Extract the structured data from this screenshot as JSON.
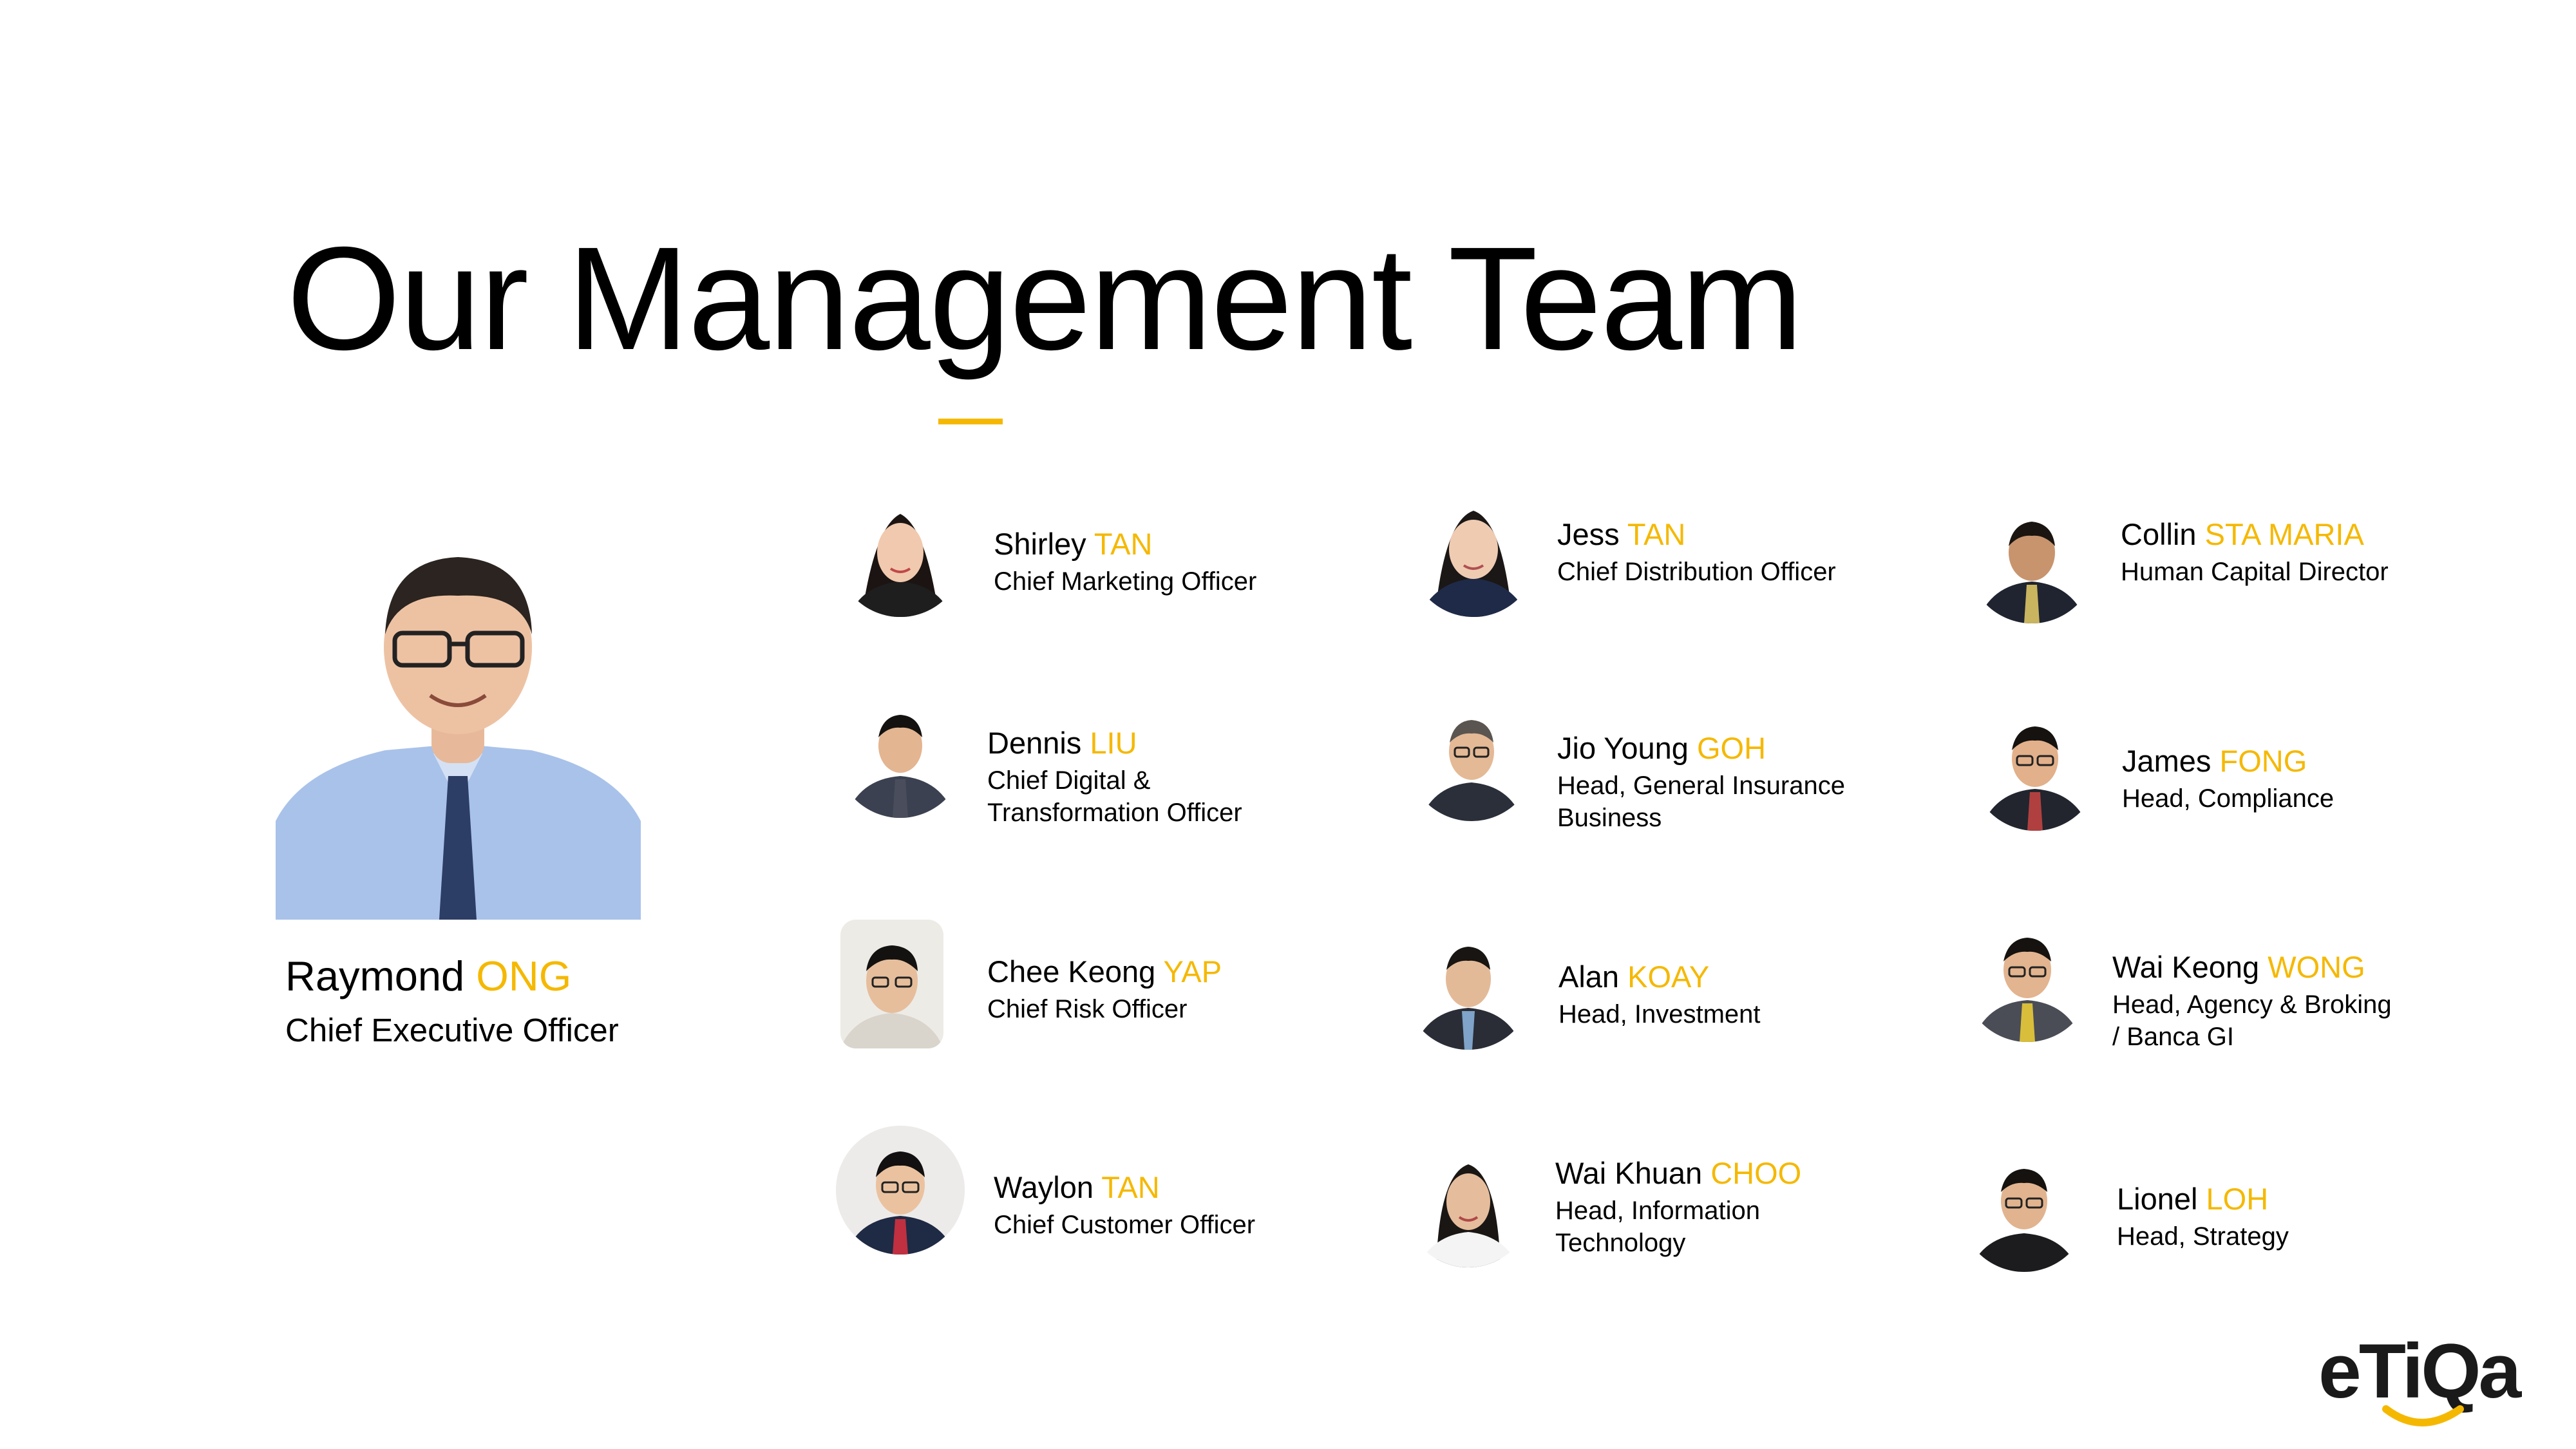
{
  "title": "Our Management Team",
  "ceo": {
    "first": "Raymond",
    "last": "ONG",
    "role": "Chief Executive Officer"
  },
  "members": [
    {
      "first": "Shirley",
      "last": "TAN",
      "role_lines": [
        "Chief Marketing Officer"
      ]
    },
    {
      "first": "Jess",
      "last": "TAN",
      "role_lines": [
        "Chief Distribution Officer"
      ]
    },
    {
      "first": "Collin",
      "last": "STA MARIA",
      "role_lines": [
        "Human Capital Director"
      ]
    },
    {
      "first": "Dennis",
      "last": "LIU",
      "role_lines": [
        "Chief Digital &",
        "Transformation Officer"
      ]
    },
    {
      "first": "Jio Young",
      "last": "GOH",
      "role_lines": [
        "Head, General Insurance",
        "Business"
      ]
    },
    {
      "first": "James",
      "last": "FONG",
      "role_lines": [
        "Head, Compliance"
      ]
    },
    {
      "first": "Chee Keong",
      "last": "YAP",
      "role_lines": [
        "Chief Risk Officer"
      ]
    },
    {
      "first": "Alan",
      "last": "KOAY",
      "role_lines": [
        "Head, Investment"
      ]
    },
    {
      "first": "Wai Keong",
      "last": "WONG",
      "role_lines": [
        "Head, Agency & Broking",
        "/ Banca GI"
      ]
    },
    {
      "first": "Waylon",
      "last": "TAN",
      "role_lines": [
        "Chief Customer Officer"
      ]
    },
    {
      "first": "Wai Khuan",
      "last": "CHOO",
      "role_lines": [
        "Head, Information",
        "Technology"
      ]
    },
    {
      "first": "Lionel",
      "last": "LOH",
      "role_lines": [
        "Head, Strategy"
      ]
    }
  ],
  "logo": {
    "text": "etiqa",
    "color": "#1a1a1a",
    "accent": "#F5B800"
  },
  "colors": {
    "accent": "#F5B800",
    "text": "#000000",
    "background": "#ffffff"
  }
}
